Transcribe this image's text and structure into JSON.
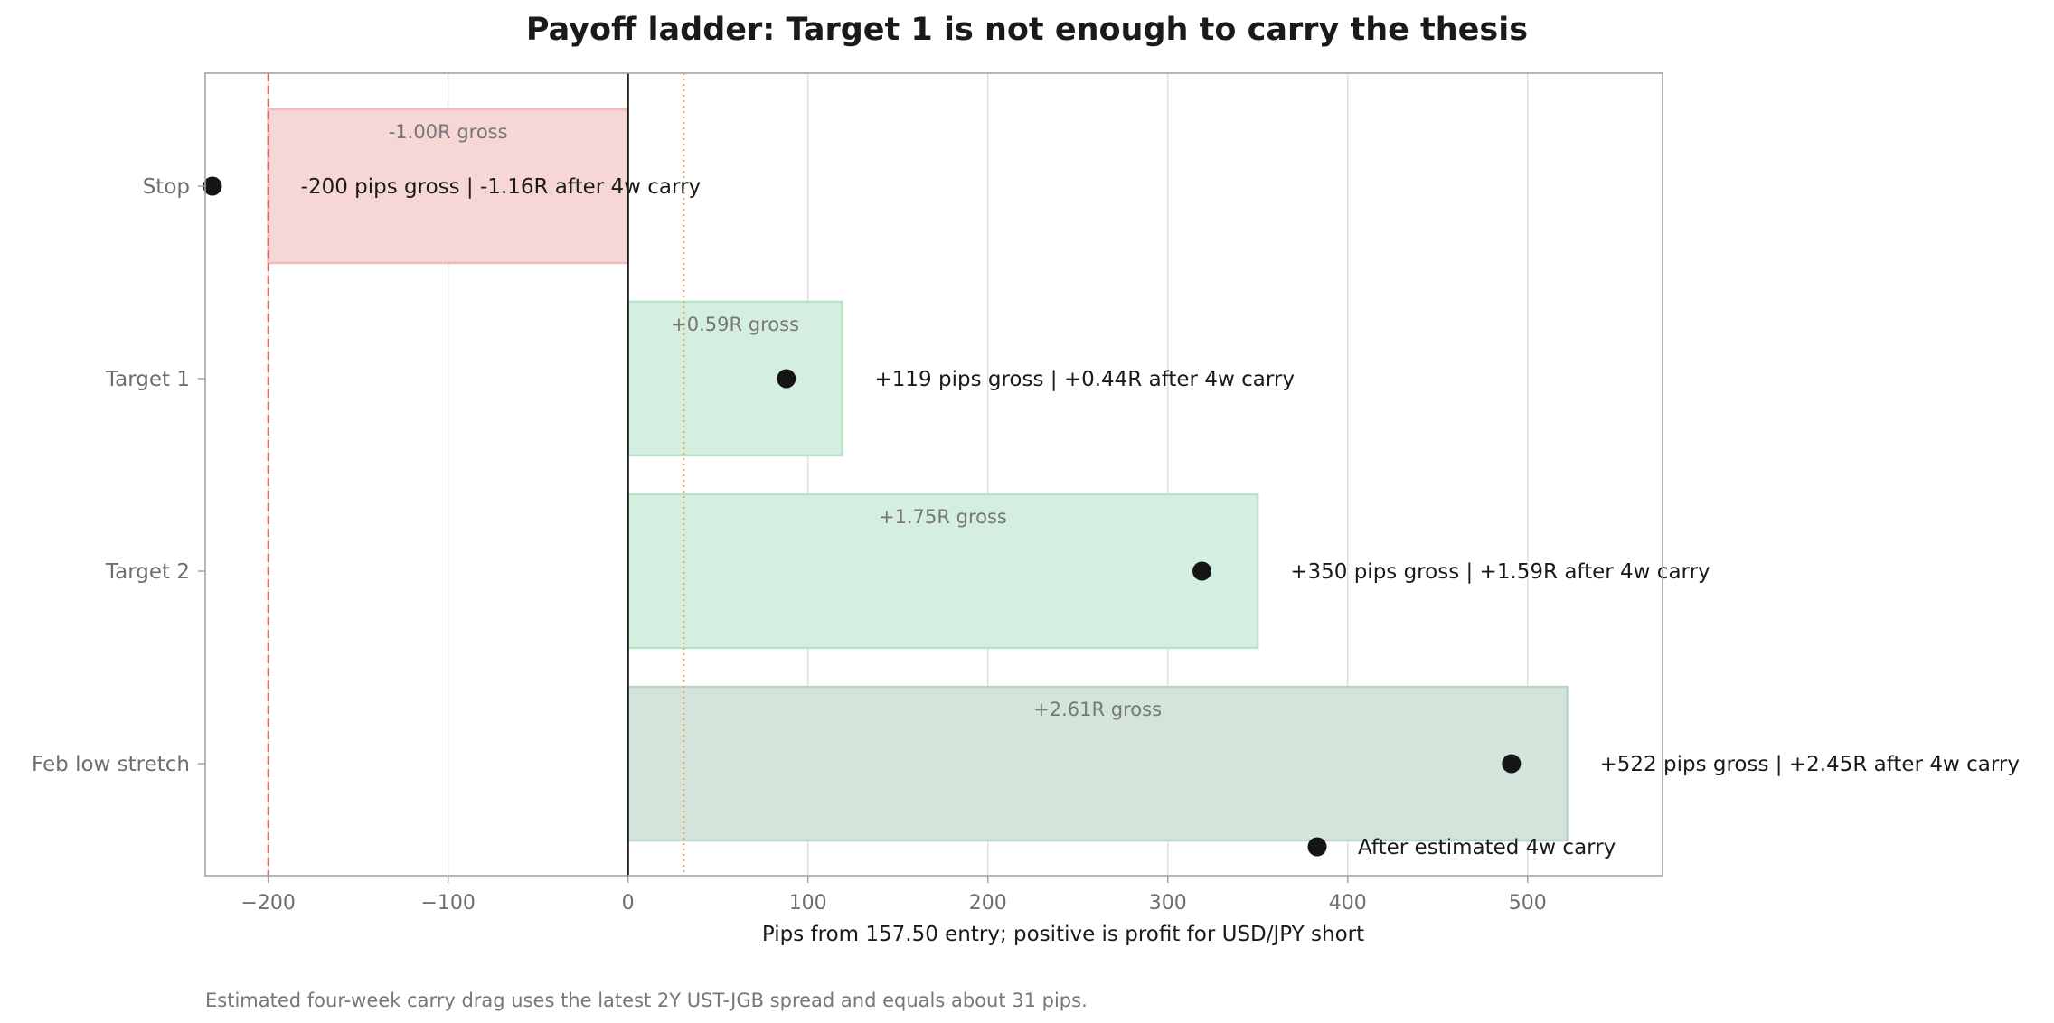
{
  "chart_data": {
    "type": "bar",
    "orientation": "horizontal",
    "title": "Payoff ladder: Target 1 is not enough to carry the thesis",
    "xlabel": "Pips from 157.50 entry; positive is profit for USD/JPY short",
    "ylabel": "",
    "xlim": [
      -235,
      575
    ],
    "xticks": [
      -200,
      -100,
      0,
      100,
      200,
      300,
      400,
      500
    ],
    "xtick_labels": [
      "−200",
      "−100",
      "0",
      "100",
      "200",
      "300",
      "400",
      "500"
    ],
    "grid": "vertical",
    "categories": [
      "Stop",
      "Target 1",
      "Target 2",
      "Feb low stretch"
    ],
    "gross_pips": [
      -200,
      119,
      350,
      522
    ],
    "after_carry_pips": [
      -231,
      88,
      319,
      491
    ],
    "gross_r_labels": [
      "-1.00R gross",
      "+0.59R gross",
      "+1.75R gross",
      "+2.61R gross"
    ],
    "point_labels": [
      "-200 pips gross | -1.16R after 4w carry",
      "+119 pips gross | +0.44R after 4w carry",
      "+350 pips gross | +1.59R after 4w carry",
      "+522 pips gross | +2.45R after 4w carry"
    ],
    "bar_colors": [
      "#f7d6d6",
      "#d4eedf",
      "#d4eedf",
      "#d3e4da"
    ],
    "bar_edge_colors": [
      "#f0b9bb",
      "#b9e3c8",
      "#b9e3c8",
      "#bdd5c6"
    ],
    "reference_lines": [
      {
        "x": -200,
        "style": "dashed",
        "color": "#e06b6b"
      },
      {
        "x": 0,
        "style": "solid",
        "color": "#1a1a1a"
      },
      {
        "x": 31,
        "style": "dotted",
        "color": "#e8a25e"
      }
    ],
    "legend": {
      "label": "After estimated 4w carry",
      "placement": "lower-right",
      "marker_color": "#151515"
    },
    "footnote": "Estimated four-week carry drag uses the latest 2Y UST-JGB spread and equals about 31 pips."
  }
}
